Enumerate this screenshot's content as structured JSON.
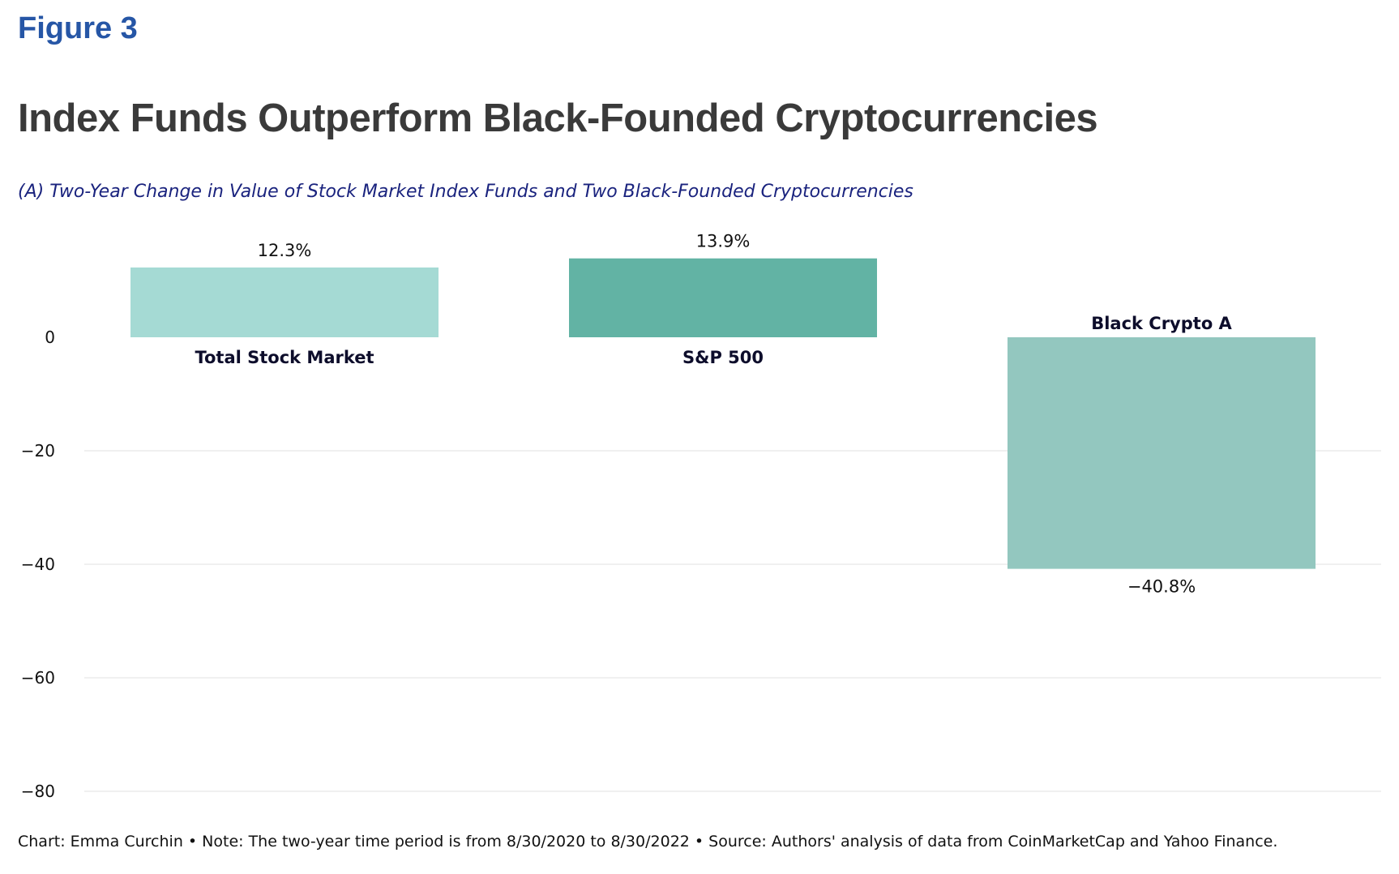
{
  "figure_label": "Figure 3",
  "title": "Index Funds Outperform Black-Founded Cryptocurrencies",
  "subtitle": "(A) Two-Year Change in Value of Stock Market Index Funds and Two Black-Founded Cryptocurrencies",
  "footer": "Chart: Emma Curchin • Note: The two-year time period is from 8/30/2020 to 8/30/2022 • Source: Authors' analysis of data from CoinMarketCap and Yahoo Finance.",
  "chart_data": {
    "type": "bar",
    "categories": [
      "Total Stock Market",
      "S&P 500",
      "Black Crypto A"
    ],
    "values": [
      12.3,
      13.9,
      -40.8
    ],
    "value_labels": [
      "12.3%",
      "13.9%",
      "−40.8%"
    ],
    "colors": [
      "#a5dad4",
      "#62b3a4",
      "#93c7bf"
    ],
    "ylim": [
      -80,
      15
    ],
    "yticks": [
      0,
      -20,
      -40,
      -60,
      -80
    ],
    "ytick_labels": [
      "0",
      "−20",
      "−40",
      "−60",
      "−80"
    ],
    "grid": true,
    "grid_color": "#e6e6e6"
  }
}
